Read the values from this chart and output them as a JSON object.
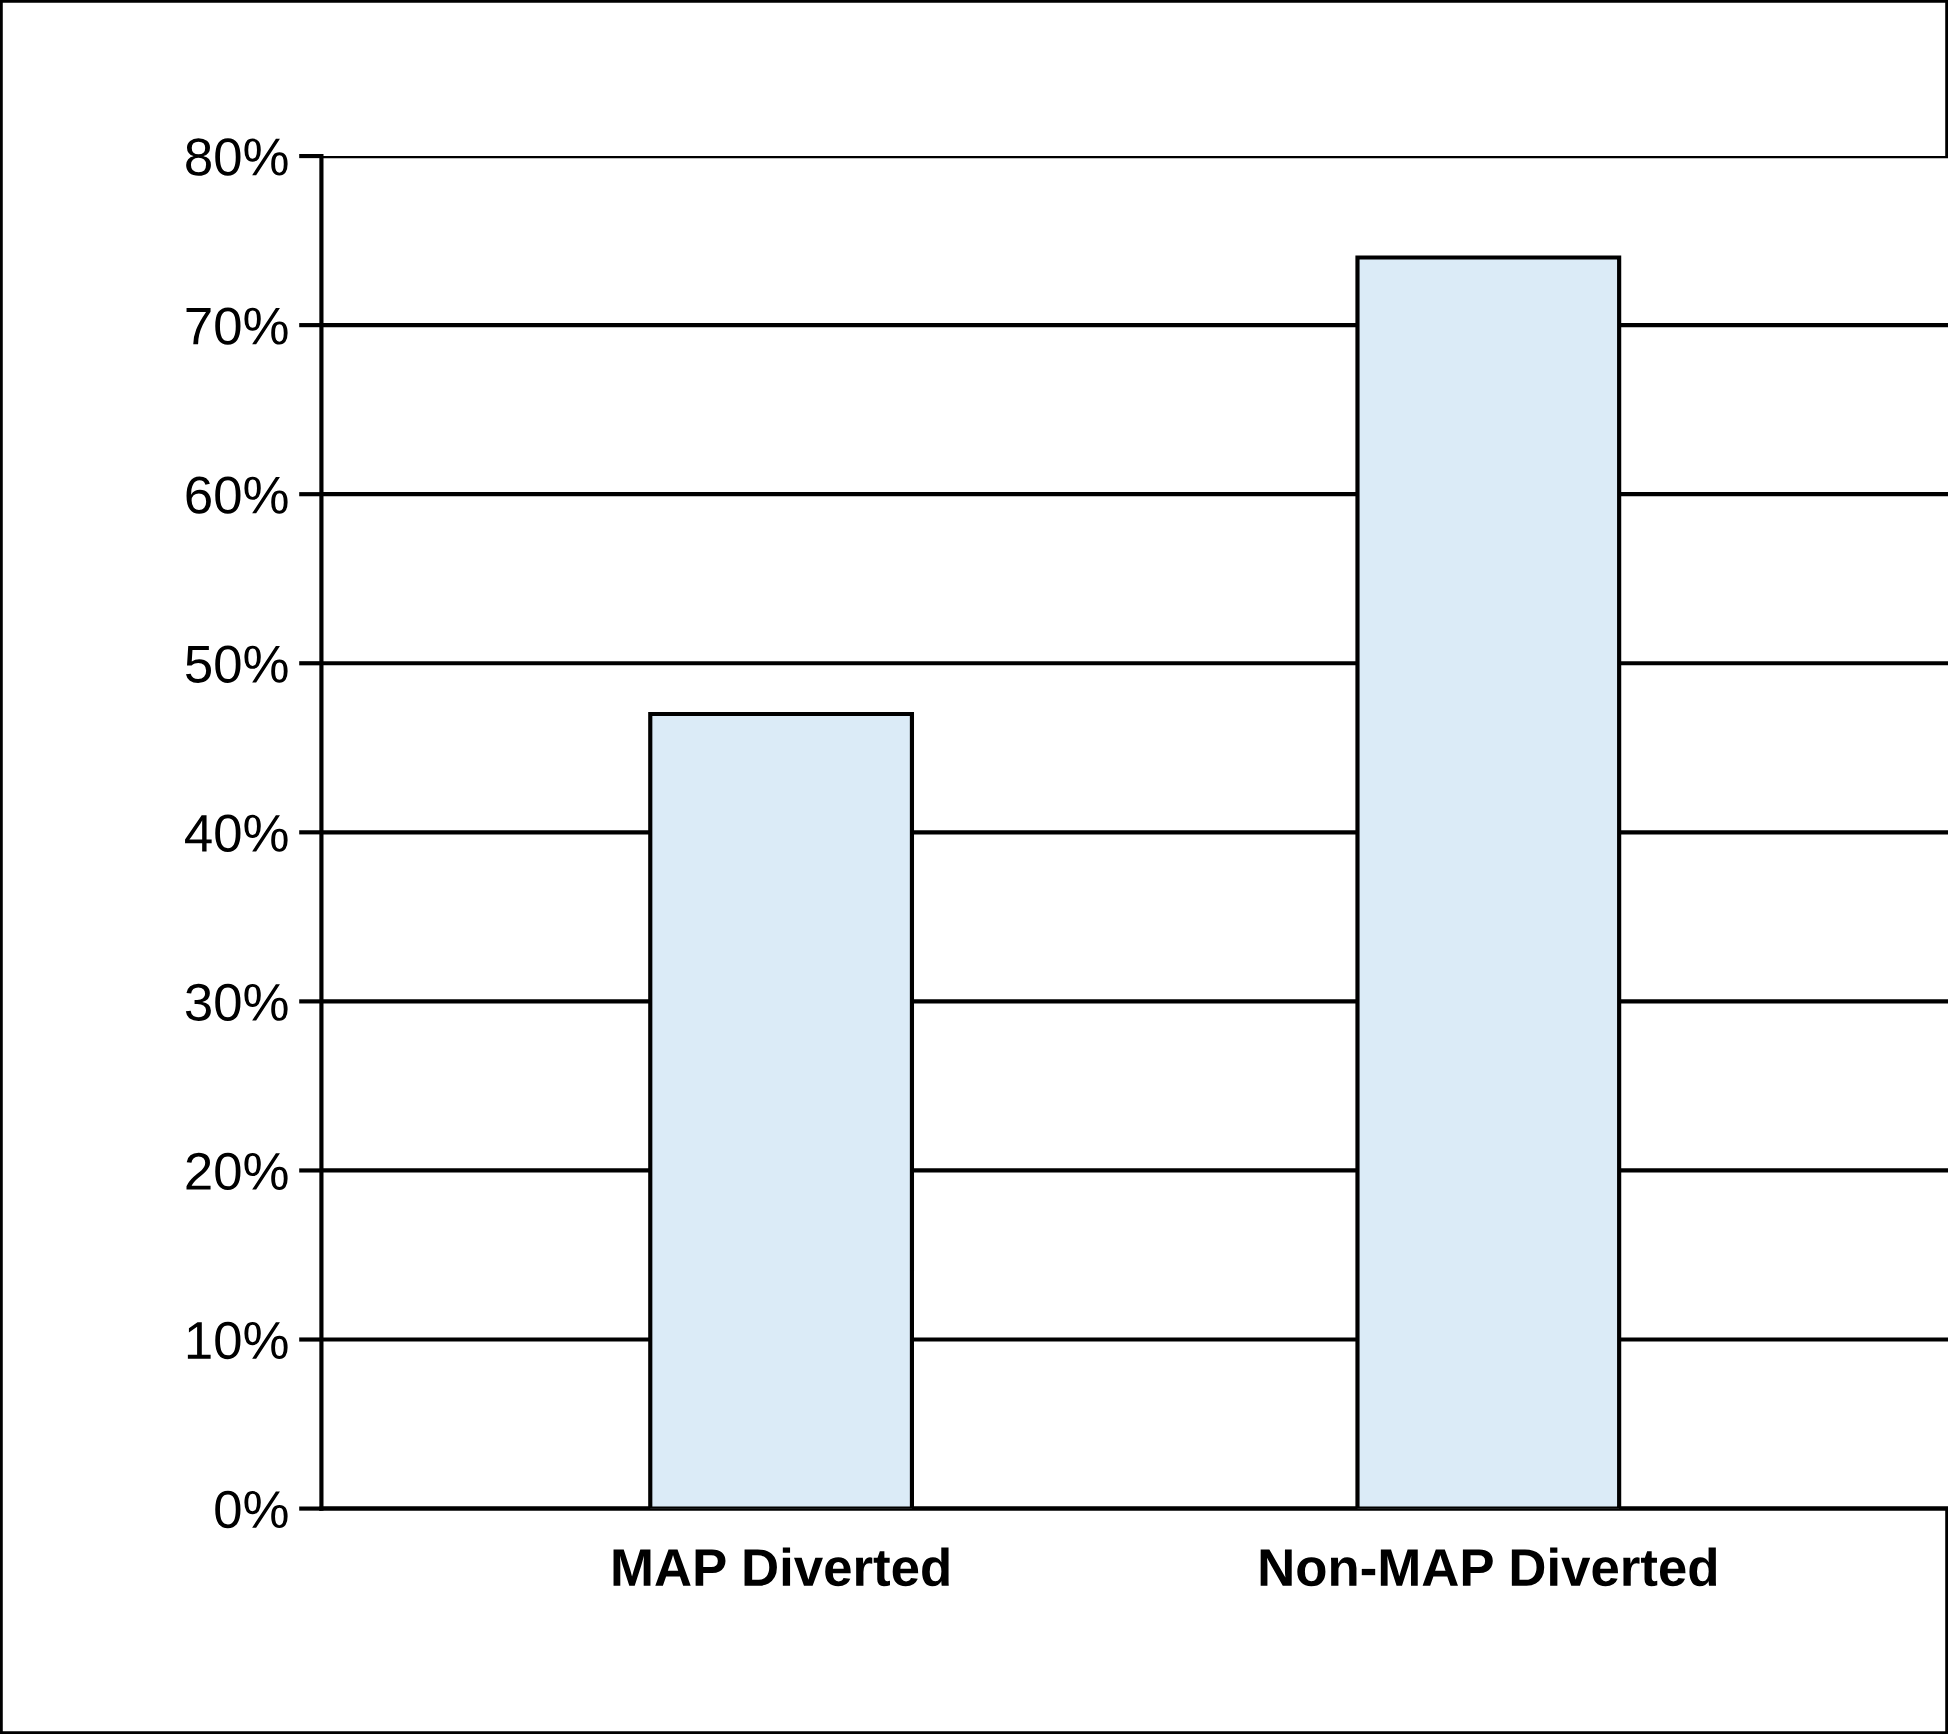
{
  "chart_data": {
    "type": "bar",
    "categories": [
      "MAP Diverted",
      "Non-MAP Diverted"
    ],
    "values": [
      47,
      74
    ],
    "color": "#dbebf7",
    "ylim": [
      0,
      80
    ],
    "yticks": [
      {
        "value": 0,
        "label": "0%"
      },
      {
        "value": 10,
        "label": "10%"
      },
      {
        "value": 20,
        "label": "20%"
      },
      {
        "value": 30,
        "label": "30%"
      },
      {
        "value": 40,
        "label": "40%"
      },
      {
        "value": 50,
        "label": "50%"
      },
      {
        "value": 60,
        "label": "60%"
      },
      {
        "value": 70,
        "label": "70%"
      },
      {
        "value": 80,
        "label": "80%"
      }
    ],
    "grid": "y",
    "legend": false
  }
}
